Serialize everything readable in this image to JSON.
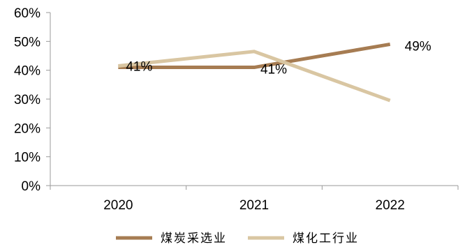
{
  "chart_data": {
    "type": "line",
    "categories": [
      "2020",
      "2021",
      "2022"
    ],
    "series": [
      {
        "name": "煤炭采选业",
        "values": [
          41,
          41,
          49
        ],
        "color": "#a67c52"
      },
      {
        "name": "煤化工行业",
        "values": [
          41.5,
          46.5,
          29.5
        ],
        "color": "#d9c6a2"
      }
    ],
    "data_labels": [
      {
        "series": 0,
        "index": 0,
        "text": "41%"
      },
      {
        "series": 0,
        "index": 1,
        "text": "41%"
      },
      {
        "series": 0,
        "index": 2,
        "text": "49%"
      }
    ],
    "ylim": [
      0,
      60
    ],
    "yticks": [
      "0%",
      "10%",
      "20%",
      "30%",
      "40%",
      "50%",
      "60%"
    ],
    "xlabel": "",
    "ylabel": "",
    "title": "",
    "grid": false,
    "legend_position": "bottom"
  }
}
